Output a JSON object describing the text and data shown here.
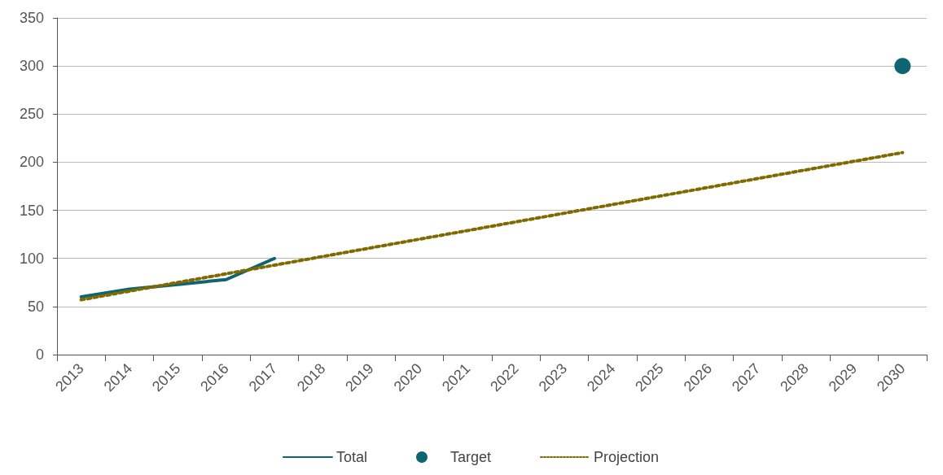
{
  "chart_data": {
    "type": "line",
    "categories": [
      "2013",
      "2014",
      "2015",
      "2016",
      "2017",
      "2018",
      "2019",
      "2020",
      "2021",
      "2022",
      "2023",
      "2024",
      "2025",
      "2026",
      "2027",
      "2028",
      "2029",
      "2030"
    ],
    "series": [
      {
        "name": "Total",
        "color": "#0e6470",
        "marker": "none",
        "line_style": "solid",
        "values": [
          60,
          68,
          73,
          78,
          100,
          null,
          null,
          null,
          null,
          null,
          null,
          null,
          null,
          null,
          null,
          null,
          null,
          null
        ]
      },
      {
        "name": "Target",
        "type": "scatter",
        "color": "#0e6470",
        "marker": "circle",
        "values": [
          null,
          null,
          null,
          null,
          null,
          null,
          null,
          null,
          null,
          null,
          null,
          null,
          null,
          null,
          null,
          null,
          null,
          300
        ]
      },
      {
        "name": "Projection",
        "color": "#7f6a00",
        "marker": "none",
        "line_style": "dotted",
        "values": [
          57,
          66,
          75,
          84,
          93,
          102,
          111,
          120,
          129,
          138,
          147,
          156,
          165,
          174,
          183,
          192,
          201,
          210
        ]
      }
    ],
    "ylim": [
      0,
      350
    ],
    "yticks": [
      0,
      50,
      100,
      150,
      200,
      250,
      300,
      350
    ],
    "grid": "y",
    "legend": "bottom"
  }
}
